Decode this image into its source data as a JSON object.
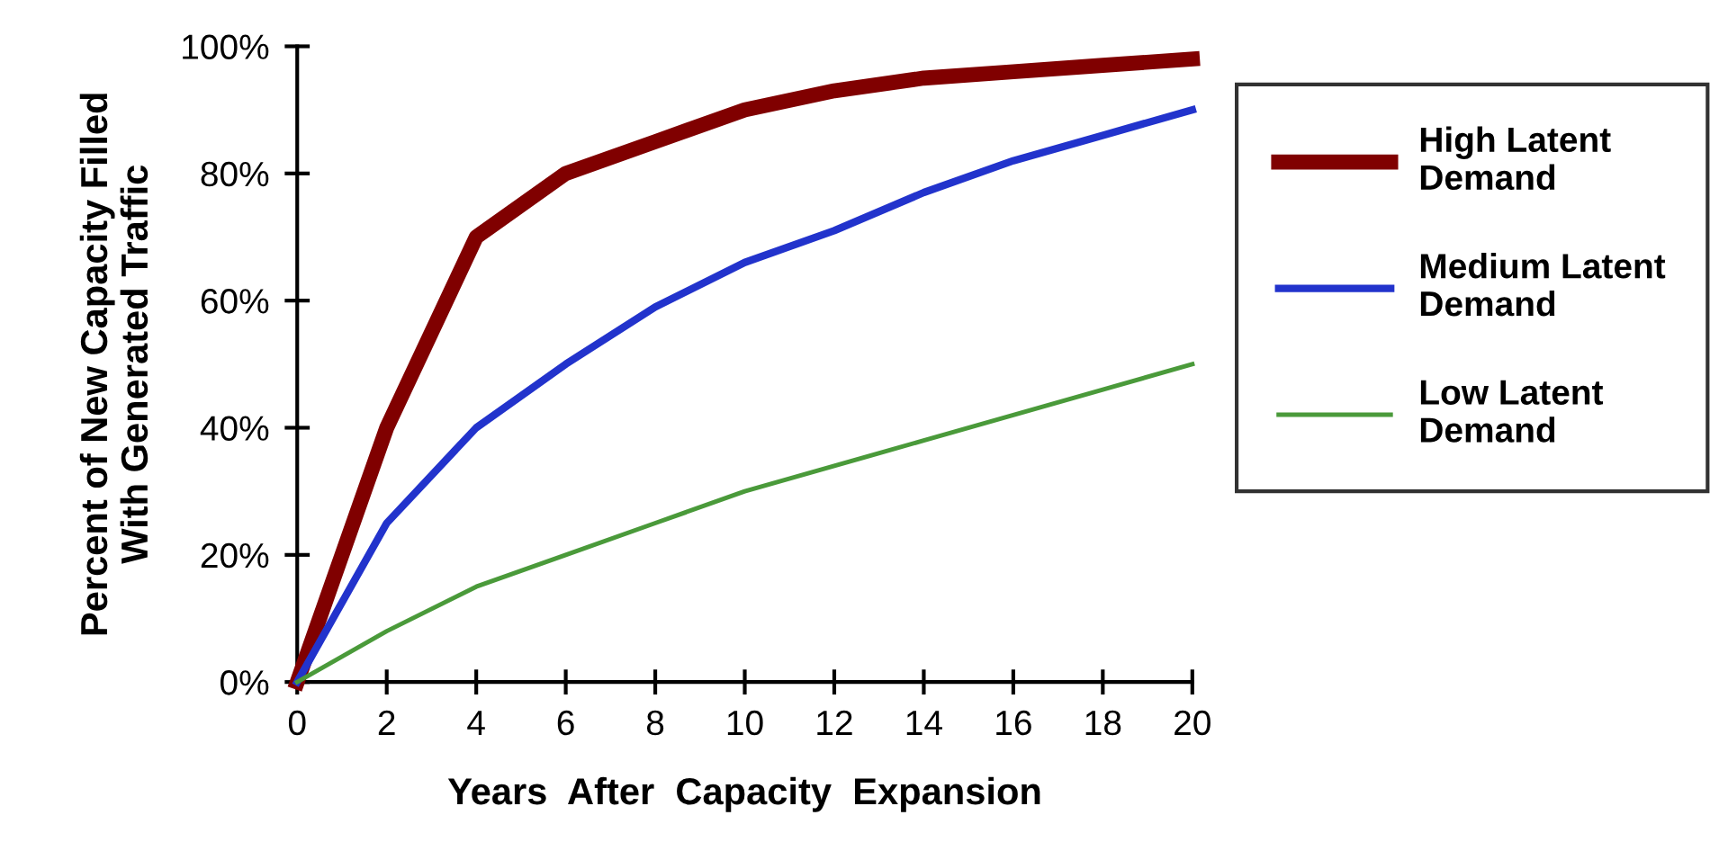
{
  "chart_data": {
    "type": "line",
    "xlabel": "Years  After  Capacity  Expansion",
    "ylabel": "Percent of New Capacity Filled\nWith Generated Traffic",
    "x": [
      0,
      2,
      4,
      6,
      8,
      10,
      12,
      14,
      16,
      18,
      20
    ],
    "series": [
      {
        "name": "High Latent\nDemand",
        "color": "#800000",
        "values": [
          0,
          40,
          70,
          80,
          85,
          90,
          93,
          95,
          96,
          97,
          98
        ]
      },
      {
        "name": "Medium Latent\nDemand",
        "color": "#2233cc",
        "values": [
          0,
          25,
          40,
          50,
          59,
          66,
          71,
          77,
          82,
          86,
          90
        ]
      },
      {
        "name": "Low Latent\nDemand",
        "color": "#4a9a3a",
        "values": [
          0,
          8,
          15,
          20,
          25,
          30,
          34,
          38,
          42,
          46,
          50
        ]
      }
    ],
    "xlim": [
      0,
      20
    ],
    "xticks": [
      0,
      2,
      4,
      6,
      8,
      10,
      12,
      14,
      16,
      18,
      20
    ],
    "ylim": [
      0,
      100
    ],
    "yticks": [
      {
        "value": 0,
        "label": "0%"
      },
      {
        "value": 20,
        "label": "20%"
      },
      {
        "value": 40,
        "label": "40%"
      },
      {
        "value": 60,
        "label": "60%"
      },
      {
        "value": 80,
        "label": "80%"
      },
      {
        "value": 100,
        "label": "100%"
      }
    ],
    "legend": "right",
    "grid": false,
    "marker": "none",
    "line_style": "solid"
  }
}
